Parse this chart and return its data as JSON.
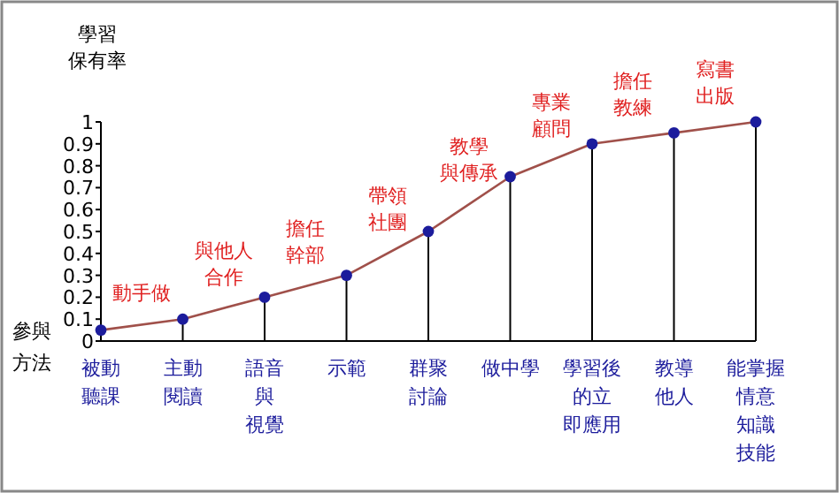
{
  "chart_data": {
    "type": "line",
    "ylabel": "學習保有率",
    "xlabel": "參與方法",
    "categories": [
      "被動聽課",
      "主動閱讀",
      "語音與視覺",
      "示範",
      "群聚討論",
      "做中學",
      "學習後的立即應用",
      "教導他人",
      "能掌握情意知識技能"
    ],
    "series": [
      {
        "color": "#a0504a",
        "colors": [
          "#1c1c9c",
          "#1c1c9c",
          "#1c1c9c",
          "#1c1c9c",
          "#1c1c9c",
          "#1c1c9c",
          "#1c1c9c",
          "#1c1c9c",
          "#1c1c9c"
        ],
        "values": [
          0.05,
          0.1,
          0.2,
          0.3,
          0.5,
          0.75,
          0.9,
          0.95,
          1.0
        ]
      }
    ],
    "annotations": [
      "動手做",
      "與他人合作",
      "擔任幹部",
      "帶領社團",
      "教學與傳承",
      "專業顧問",
      "擔任教練",
      "寫書出版"
    ],
    "ylim": [
      0,
      1
    ],
    "yticks": [
      0,
      0.1,
      0.2,
      0.3,
      0.4,
      0.5,
      0.6,
      0.7,
      0.8,
      0.9,
      1
    ],
    "marker": "circle",
    "grid": "x"
  }
}
